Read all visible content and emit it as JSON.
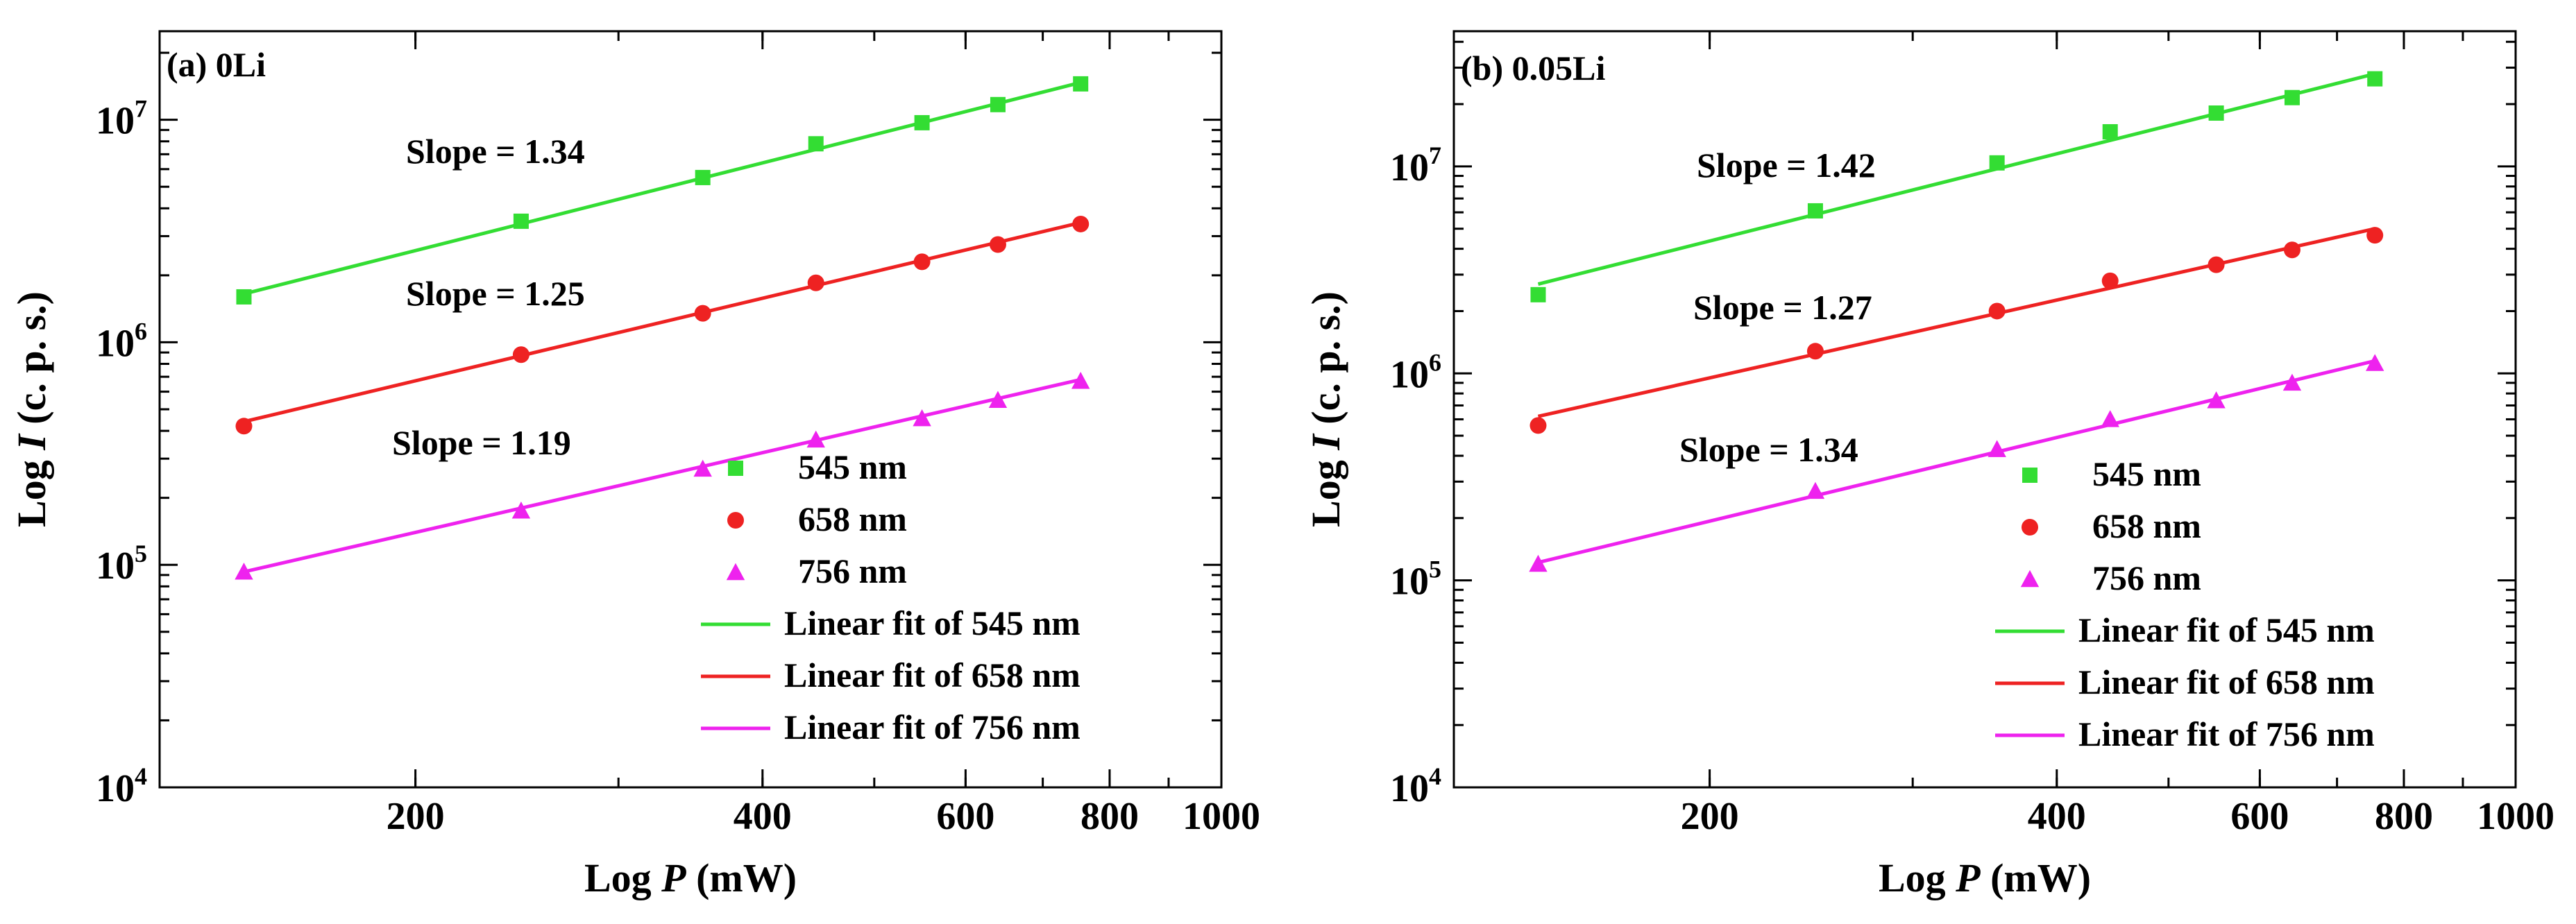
{
  "chart_data": [
    {
      "type": "scatter",
      "panel_label": "(a) 0Li",
      "xscale": "log",
      "yscale": "log",
      "xlim": [
        120,
        1000
      ],
      "ylim": [
        10000,
        25000000
      ],
      "xlabel_prefix": "Log ",
      "xlabel_var": "P",
      "xlabel_suffix": " (mW)",
      "ylabel_prefix": "Log ",
      "ylabel_var": "I",
      "ylabel_suffix": " (c. p. s.)",
      "xticks": [
        200,
        400,
        600,
        800,
        1000
      ],
      "xtick_labels": [
        "200",
        "400",
        "600",
        "800",
        "1000"
      ],
      "yticks": [
        10000,
        100000,
        1000000,
        10000000
      ],
      "ytick_bases": [
        "10",
        "10",
        "10",
        "10"
      ],
      "ytick_exps": [
        "4",
        "5",
        "6",
        "7"
      ],
      "x": [
        142,
        247,
        355,
        445,
        550,
        640,
        755
      ],
      "series": [
        {
          "name": "545 nm",
          "marker": "square",
          "color": "#33dd33",
          "values": [
            1600000,
            3500000,
            5500000,
            7800000,
            9700000,
            11700000,
            14500000
          ],
          "fit_label": "Linear fit of 545 nm",
          "fit_endpoints": [
            1650000,
            14700000
          ],
          "slope_label": "Slope = 1.34"
        },
        {
          "name": "658 nm",
          "marker": "circle",
          "color": "#ee2222",
          "values": [
            420000,
            880000,
            1350000,
            1850000,
            2300000,
            2750000,
            3400000
          ],
          "fit_label": "Linear fit of 658 nm",
          "fit_endpoints": [
            440000,
            3450000
          ],
          "slope_label": "Slope = 1.25"
        },
        {
          "name": "756 nm",
          "marker": "triangle",
          "color": "#ee22ee",
          "values": [
            93000,
            175000,
            270000,
            365000,
            455000,
            550000,
            670000
          ],
          "fit_label": "Linear fit of 756 nm",
          "fit_endpoints": [
            93000,
            680000
          ],
          "slope_label": "Slope = 1.19"
        }
      ],
      "legend_position": "bottom-right"
    },
    {
      "type": "scatter",
      "panel_label": "(b) 0.05Li",
      "xscale": "log",
      "yscale": "log",
      "xlim": [
        120,
        1000
      ],
      "ylim": [
        10000,
        45000000
      ],
      "xlabel_prefix": "Log ",
      "xlabel_var": "P",
      "xlabel_suffix": " (mW)",
      "ylabel_prefix": "Log ",
      "ylabel_var": "I",
      "ylabel_suffix": " (c. p. s.)",
      "xticks": [
        200,
        400,
        600,
        800,
        1000
      ],
      "xtick_labels": [
        "200",
        "400",
        "600",
        "800",
        "1000"
      ],
      "yticks": [
        10000,
        100000,
        1000000,
        10000000
      ],
      "ytick_bases": [
        "10",
        "10",
        "10",
        "10"
      ],
      "ytick_exps": [
        "4",
        "5",
        "6",
        "7"
      ],
      "x": [
        142,
        247,
        355,
        445,
        550,
        640,
        755
      ],
      "series": [
        {
          "name": "545 nm",
          "marker": "square",
          "color": "#33dd33",
          "values": [
            2400000,
            6100000,
            10400000,
            14700000,
            18100000,
            21500000,
            26500000
          ],
          "fit_label": "Linear fit of 545 nm",
          "fit_endpoints": [
            2700000,
            28000000
          ],
          "slope_label": "Slope = 1.42"
        },
        {
          "name": "658 nm",
          "marker": "circle",
          "color": "#ee2222",
          "values": [
            560000,
            1280000,
            2000000,
            2800000,
            3350000,
            3950000,
            4650000
          ],
          "fit_label": "Linear fit of 658 nm",
          "fit_endpoints": [
            620000,
            5000000
          ],
          "slope_label": "Slope = 1.27"
        },
        {
          "name": "756 nm",
          "marker": "triangle",
          "color": "#ee22ee",
          "values": [
            120000,
            270000,
            430000,
            600000,
            740000,
            900000,
            1120000
          ],
          "fit_label": "Linear fit of 756 nm",
          "fit_endpoints": [
            122000,
            1150000
          ],
          "slope_label": "Slope = 1.34"
        }
      ],
      "legend_position": "bottom-right"
    }
  ]
}
